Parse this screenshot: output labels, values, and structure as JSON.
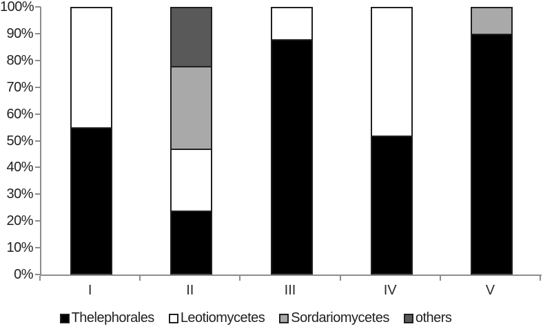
{
  "colors": {
    "axis": "#8c8c8c",
    "text": "#1f1f1f",
    "segment_border": "#1f1f1f",
    "background": "#ffffff"
  },
  "chart_data": {
    "type": "bar",
    "stacked": true,
    "percent": true,
    "title": "",
    "xlabel": "",
    "ylabel": "",
    "ylim": [
      0,
      100
    ],
    "ytick_step": 10,
    "yticks": [
      "0%",
      "10%",
      "20%",
      "30%",
      "40%",
      "50%",
      "60%",
      "70%",
      "80%",
      "90%",
      "100%"
    ],
    "categories": [
      "I",
      "II",
      "III",
      "IV",
      "V"
    ],
    "series": [
      {
        "name": "Thelephorales",
        "color": "#000000",
        "values": [
          55,
          24,
          88,
          52,
          90
        ]
      },
      {
        "name": "Leotiomycetes",
        "color": "#ffffff",
        "values": [
          45,
          23,
          12,
          48,
          0
        ]
      },
      {
        "name": "Sordariomycetes",
        "color": "#a9a9a9",
        "values": [
          0,
          31,
          0,
          0,
          10
        ]
      },
      {
        "name": "others",
        "color": "#595959",
        "values": [
          0,
          22,
          0,
          0,
          0
        ]
      }
    ],
    "legend_position": "bottom",
    "grid": false
  }
}
